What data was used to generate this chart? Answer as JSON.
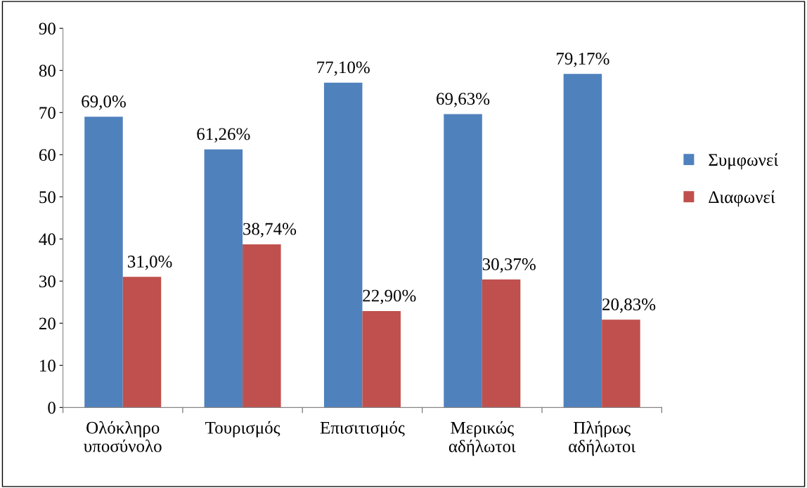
{
  "chart_data": {
    "type": "bar",
    "categories": [
      "Ολόκληρο\nυποσύνολο",
      "Τουρισμός",
      "Επισιτισμός",
      "Μερικώς\nαδήλωτοι",
      "Πλήρως\nαδήλωτοι"
    ],
    "series": [
      {
        "name": "Συμφωνεί",
        "color": "#4f81bd",
        "values": [
          69.0,
          61.26,
          77.1,
          69.63,
          79.17
        ],
        "value_labels": [
          "69,0%",
          "61,26%",
          "77,10%",
          "69,63%",
          "79,17%"
        ]
      },
      {
        "name": "Διαφωνεί",
        "color": "#c0504d",
        "values": [
          31.0,
          38.74,
          22.9,
          30.37,
          20.83
        ],
        "value_labels": [
          "31,0%",
          "38,74%",
          "22,90%",
          "30,37%",
          "20,83%"
        ]
      }
    ],
    "ylim": [
      0,
      90
    ],
    "yticks": [
      0,
      10,
      20,
      30,
      40,
      50,
      60,
      70,
      80,
      90
    ],
    "grid": false,
    "legend": "right"
  }
}
